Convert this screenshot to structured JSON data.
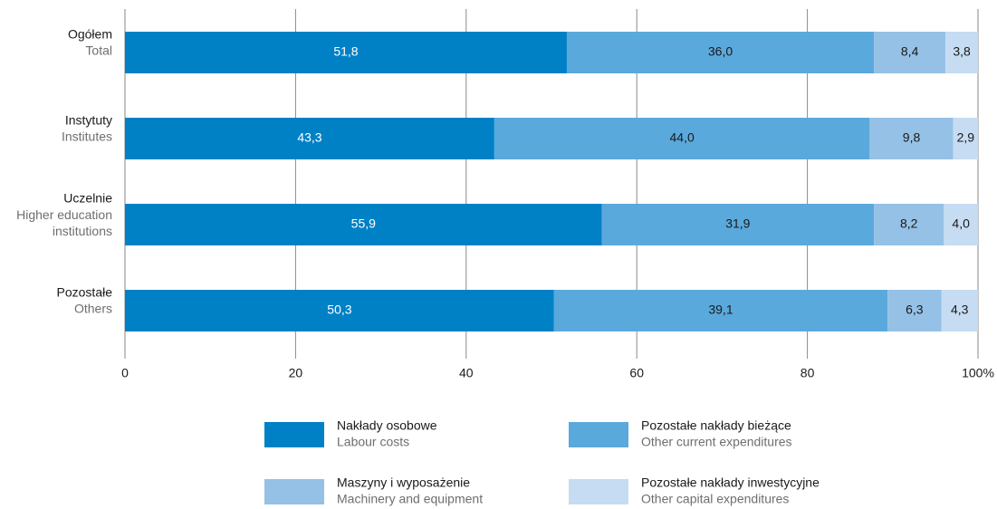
{
  "chart_data": {
    "type": "stacked-barh",
    "categories": [
      "Ogółem",
      "Instytuty",
      "Uczelnie",
      "Pozostałe"
    ],
    "categories_en": [
      "Total",
      "Institutes",
      "Higher education institutions",
      "Others"
    ],
    "series": [
      {
        "name": "Nakłady osobowe",
        "name_en": "Labour costs",
        "color": "#0081c6",
        "label_color": "#ffffff",
        "values": [
          51.8,
          43.3,
          55.9,
          50.3
        ],
        "value_labels": [
          "51,8",
          "43,3",
          "55,9",
          "50,3"
        ]
      },
      {
        "name": "Pozostałe nakłady bieżące",
        "name_en": "Other current expenditures",
        "color": "#5aa9dc",
        "label_color": "#1a1a1a",
        "values": [
          36.0,
          44.0,
          31.9,
          39.1
        ],
        "value_labels": [
          "36,0",
          "44,0",
          "31,9",
          "39,1"
        ]
      },
      {
        "name": "Maszyny i wyposażenie",
        "name_en": "Machinery and equipment",
        "color": "#95c1e6",
        "label_color": "#1a1a1a",
        "values": [
          8.4,
          9.8,
          8.2,
          6.3
        ],
        "value_labels": [
          "8,4",
          "9,8",
          "8,2",
          "6,3"
        ]
      },
      {
        "name": "Pozostałe nakłady inwestycyjne",
        "name_en": "Other capital expenditures",
        "color": "#c6dcf2",
        "label_color": "#1a1a1a",
        "values": [
          3.8,
          2.9,
          4.0,
          4.3
        ],
        "value_labels": [
          "3,8",
          "2,9",
          "4,0",
          "4,3"
        ]
      }
    ],
    "xlim": [
      0,
      100
    ],
    "xticks": [
      0,
      20,
      40,
      60,
      80,
      {
        "value": 100,
        "label": "100%"
      }
    ],
    "grid": true
  }
}
